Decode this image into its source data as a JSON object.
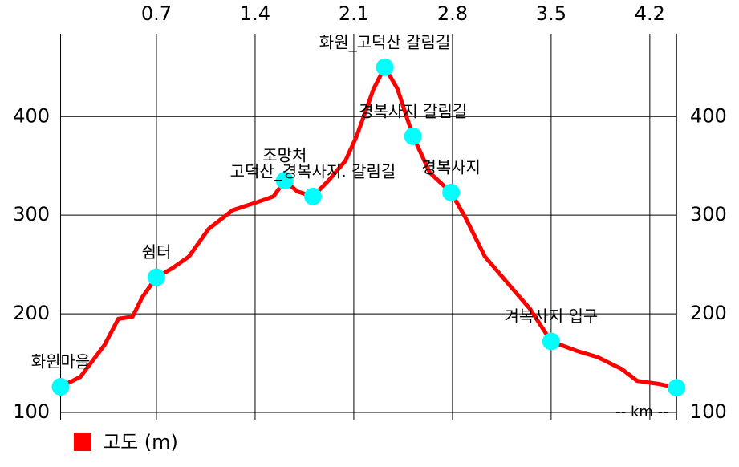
{
  "chart_data": {
    "type": "line",
    "x_label": "-- km --",
    "x": [
      0.02,
      0.16,
      0.33,
      0.43,
      0.53,
      0.6,
      0.7,
      0.81,
      0.93,
      1.07,
      1.24,
      1.41,
      1.53,
      1.61,
      1.7,
      1.81,
      1.92,
      2.04,
      2.12,
      2.24,
      2.32,
      2.41,
      2.52,
      2.64,
      2.79,
      2.89,
      3.03,
      3.18,
      3.35,
      3.5,
      3.69,
      3.83,
      4.0,
      4.11,
      4.26,
      4.39
    ],
    "series": [
      {
        "name": "고도 (m)",
        "color": "#ff0000",
        "values": [
          126,
          136,
          168,
          195,
          197,
          217,
          237,
          246,
          258,
          286,
          305,
          313,
          319,
          335,
          324,
          319,
          335,
          355,
          380,
          428,
          450,
          428,
          380,
          343,
          323,
          298,
          258,
          233,
          205,
          172,
          162,
          156,
          144,
          132,
          129,
          125
        ]
      }
    ],
    "waypoints": {
      "color": "#00ffff",
      "x": [
        0.02,
        0.7,
        1.61,
        1.81,
        2.32,
        2.52,
        2.79,
        3.5,
        4.39
      ],
      "values": [
        126,
        237,
        335,
        319,
        450,
        380,
        323,
        172,
        125
      ],
      "labels": [
        "화원마을",
        "쉼터",
        "조망처",
        "고덕산_경복사지. 갈림길",
        "화원_고덕산 갈림길",
        "경복사지 갈림길",
        "경복사지",
        "겨복사지 입구",
        null
      ]
    },
    "xlim": [
      0,
      4.4
    ],
    "xticks": [
      0.7,
      1.4,
      2.1,
      2.8,
      3.5,
      4.2
    ],
    "ylim": [
      100,
      484
    ],
    "yticks": [
      100,
      200,
      300,
      400
    ],
    "grid": true
  }
}
